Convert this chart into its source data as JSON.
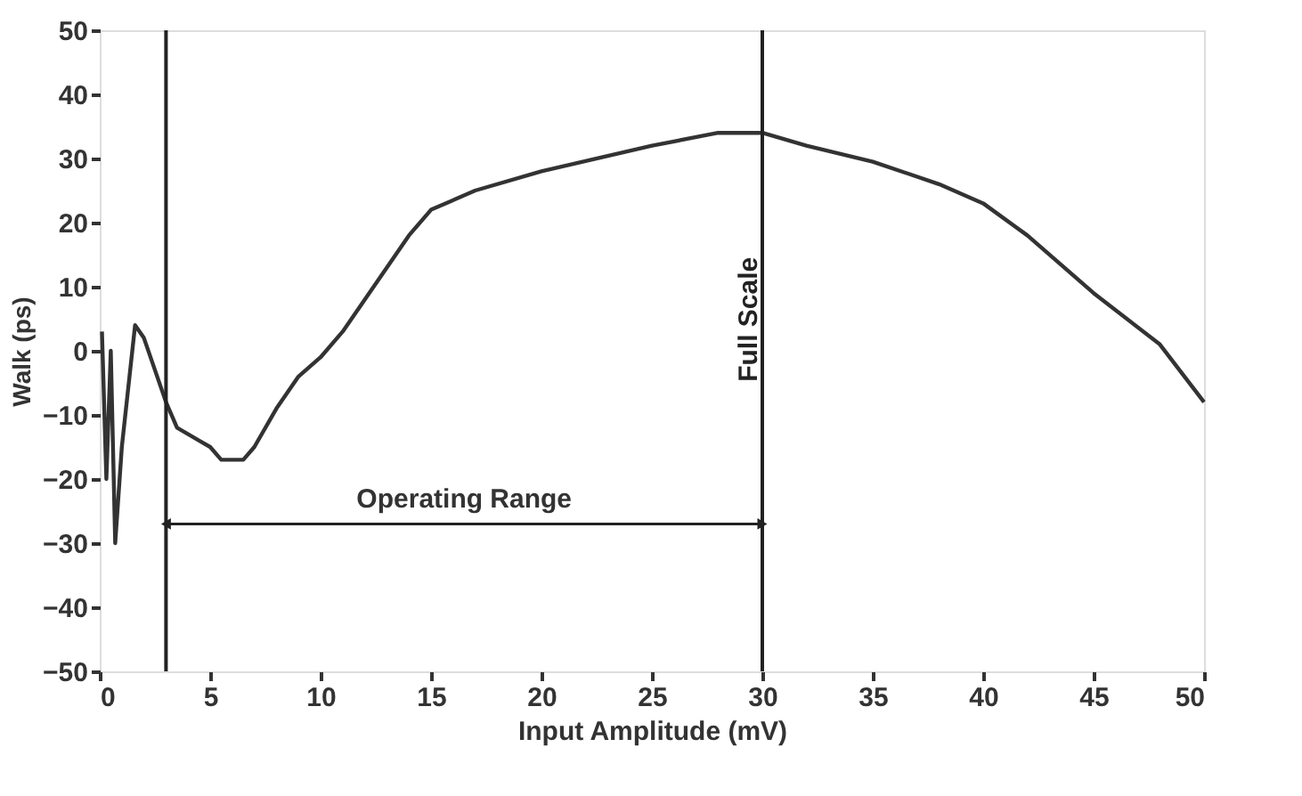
{
  "chart_data": {
    "type": "line",
    "xlabel": "Input Amplitude (mV)",
    "ylabel": "Walk (ps)",
    "x": [
      0.1,
      0.3,
      0.5,
      0.7,
      1.0,
      1.6,
      2.0,
      3.0,
      3.5,
      4.0,
      4.5,
      5.0,
      5.5,
      6.5,
      7.0,
      8,
      9,
      10,
      11,
      12,
      13,
      14,
      15,
      17,
      20,
      25,
      28,
      30,
      32,
      35,
      38,
      40,
      42,
      45,
      48,
      50
    ],
    "series": [
      {
        "color": "#333333",
        "values": [
          3,
          -20,
          0,
          -30,
          -15,
          4,
          2,
          -8,
          -12,
          -13,
          -14,
          -15,
          -17,
          -17,
          -15,
          -9,
          -4,
          -1,
          3,
          8,
          13,
          18,
          22,
          25,
          28,
          32,
          34,
          34,
          32,
          29.5,
          26,
          23,
          18,
          9,
          1,
          -8
        ]
      }
    ],
    "xlim": [
      0,
      50
    ],
    "ylim": [
      -50,
      50
    ],
    "xticks": [
      0,
      5,
      10,
      15,
      20,
      25,
      30,
      35,
      40,
      45,
      50
    ],
    "yticks": [
      -50,
      -40,
      -30,
      -20,
      -10,
      0,
      10,
      20,
      30,
      40,
      50
    ],
    "grid": false,
    "marker": "none",
    "line_style": "solid",
    "ref_lines": [
      {
        "axis": "x",
        "value": 3,
        "label": null
      },
      {
        "axis": "x",
        "value": 30,
        "label": "Full Scale"
      }
    ],
    "annotations": [
      "Operating Range"
    ]
  }
}
